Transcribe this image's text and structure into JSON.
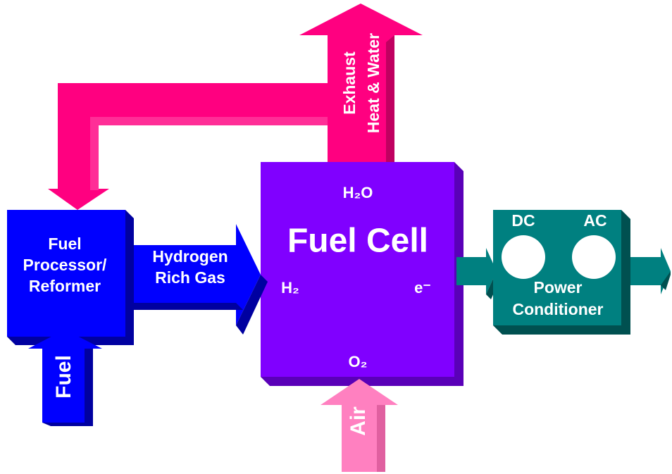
{
  "nodes": [
    {
      "id": "reformer",
      "label": [
        "Fuel",
        "Processor/",
        "Reformer"
      ]
    },
    {
      "id": "fuel-cell",
      "label": "Fuel Cell",
      "ports": [
        "H₂O",
        "H₂",
        "e⁻",
        "O₂"
      ]
    },
    {
      "id": "power-conditioner",
      "label": [
        "Power",
        "Conditioner"
      ],
      "ports": [
        "DC",
        "AC"
      ]
    }
  ],
  "flows": [
    {
      "id": "hydrogen",
      "label": [
        "Hydrogen",
        "Rich Gas"
      ]
    },
    {
      "id": "exhaust",
      "label": [
        "Exhaust",
        "Heat & Water"
      ]
    },
    {
      "id": "fuel",
      "label": "Fuel"
    },
    {
      "id": "air",
      "label": "Air"
    }
  ]
}
